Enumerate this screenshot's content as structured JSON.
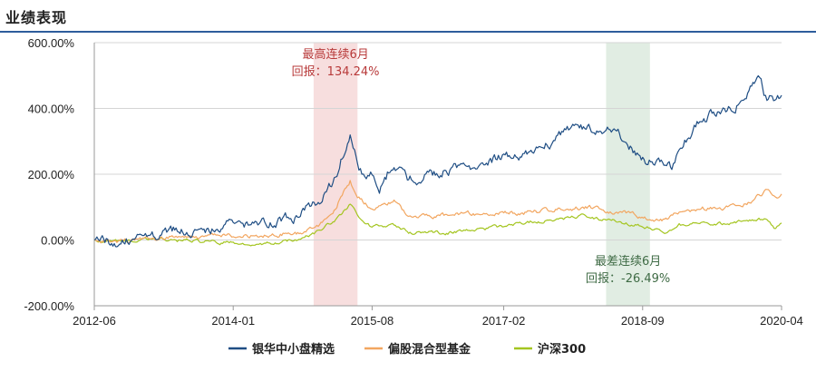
{
  "header": {
    "title": "业绩表现"
  },
  "colors": {
    "series1": "#1f4e84",
    "series2": "#f2a660",
    "series3": "#a4c520",
    "best_band": "#f7dede",
    "worst_band": "#e1ede3",
    "best_text": "#b83a3a",
    "worst_text": "#3f6b45",
    "grid": "#d5d5d5",
    "axis": "#999999"
  },
  "chart_data": {
    "type": "line",
    "title": "",
    "xlabel": "",
    "ylabel": "",
    "x_ticks": [
      "2012-06",
      "2014-01",
      "2015-08",
      "2017-02",
      "2018-09",
      "2020-04"
    ],
    "x_range": [
      "2012-06",
      "2020-04"
    ],
    "y_ticks": [
      "600.00%",
      "400.00%",
      "200.00%",
      "0.00%",
      "-200.00%"
    ],
    "ylim": [
      -200,
      600
    ],
    "grid": true,
    "legend_position": "bottom",
    "series": [
      {
        "name": "银华中小盘精选",
        "points": [
          [
            "2012-06",
            0
          ],
          [
            "2012-10",
            -2
          ],
          [
            "2013-01",
            10
          ],
          [
            "2013-05",
            25
          ],
          [
            "2013-09",
            35
          ],
          [
            "2014-01",
            45
          ],
          [
            "2014-04",
            58
          ],
          [
            "2014-07",
            60
          ],
          [
            "2014-10",
            75
          ],
          [
            "2015-01",
            120
          ],
          [
            "2015-03",
            190
          ],
          [
            "2015-05",
            330
          ],
          [
            "2015-06",
            240
          ],
          [
            "2015-07",
            180
          ],
          [
            "2015-08",
            200
          ],
          [
            "2015-09",
            150
          ],
          [
            "2015-11",
            240
          ],
          [
            "2016-01",
            180
          ],
          [
            "2016-03",
            190
          ],
          [
            "2016-07",
            220
          ],
          [
            "2016-10",
            230
          ],
          [
            "2017-02",
            250
          ],
          [
            "2017-05",
            270
          ],
          [
            "2017-09",
            300
          ],
          [
            "2017-12",
            350
          ],
          [
            "2018-02",
            340
          ],
          [
            "2018-04",
            330
          ],
          [
            "2018-06",
            310
          ],
          [
            "2018-09",
            250
          ],
          [
            "2018-11",
            230
          ],
          [
            "2019-01",
            220
          ],
          [
            "2019-02",
            280
          ],
          [
            "2019-05",
            370
          ],
          [
            "2019-08",
            390
          ],
          [
            "2019-11",
            430
          ],
          [
            "2020-01",
            490
          ],
          [
            "2020-02",
            420
          ],
          [
            "2020-04",
            440
          ]
        ]
      },
      {
        "name": "偏股混合型基金",
        "points": [
          [
            "2012-06",
            0
          ],
          [
            "2012-10",
            -5
          ],
          [
            "2013-01",
            3
          ],
          [
            "2013-05",
            8
          ],
          [
            "2013-09",
            10
          ],
          [
            "2014-01",
            12
          ],
          [
            "2014-06",
            15
          ],
          [
            "2014-10",
            22
          ],
          [
            "2015-01",
            50
          ],
          [
            "2015-03",
            100
          ],
          [
            "2015-05",
            180
          ],
          [
            "2015-06",
            130
          ],
          [
            "2015-08",
            95
          ],
          [
            "2015-11",
            120
          ],
          [
            "2016-01",
            70
          ],
          [
            "2016-06",
            75
          ],
          [
            "2016-10",
            80
          ],
          [
            "2017-02",
            82
          ],
          [
            "2017-06",
            85
          ],
          [
            "2017-10",
            95
          ],
          [
            "2018-01",
            100
          ],
          [
            "2018-04",
            90
          ],
          [
            "2018-08",
            75
          ],
          [
            "2018-12",
            60
          ],
          [
            "2019-02",
            85
          ],
          [
            "2019-05",
            95
          ],
          [
            "2019-09",
            100
          ],
          [
            "2019-12",
            120
          ],
          [
            "2020-02",
            150
          ],
          [
            "2020-03",
            130
          ],
          [
            "2020-04",
            140
          ]
        ]
      },
      {
        "name": "沪深300",
        "points": [
          [
            "2012-06",
            0
          ],
          [
            "2012-10",
            -8
          ],
          [
            "2013-01",
            5
          ],
          [
            "2013-05",
            0
          ],
          [
            "2013-09",
            -5
          ],
          [
            "2014-01",
            -8
          ],
          [
            "2014-06",
            -10
          ],
          [
            "2014-10",
            0
          ],
          [
            "2015-01",
            30
          ],
          [
            "2015-03",
            60
          ],
          [
            "2015-05",
            110
          ],
          [
            "2015-06",
            75
          ],
          [
            "2015-08",
            40
          ],
          [
            "2015-11",
            45
          ],
          [
            "2016-01",
            25
          ],
          [
            "2016-06",
            22
          ],
          [
            "2016-10",
            30
          ],
          [
            "2017-02",
            40
          ],
          [
            "2017-06",
            55
          ],
          [
            "2017-10",
            65
          ],
          [
            "2018-01",
            75
          ],
          [
            "2018-04",
            60
          ],
          [
            "2018-08",
            45
          ],
          [
            "2018-12",
            25
          ],
          [
            "2019-02",
            45
          ],
          [
            "2019-05",
            50
          ],
          [
            "2019-09",
            50
          ],
          [
            "2019-12",
            60
          ],
          [
            "2020-02",
            62
          ],
          [
            "2020-03",
            40
          ],
          [
            "2020-04",
            52
          ]
        ]
      }
    ],
    "annotations": [
      {
        "id": "best",
        "label_line1": "最高连续6月",
        "label_line2": "回报：134.24%",
        "band_start": "2014-12",
        "band_end": "2015-06"
      },
      {
        "id": "worst",
        "label_line1": "最差连续6月",
        "label_line2": "回报：-26.49%",
        "band_start": "2018-04",
        "band_end": "2018-10"
      }
    ]
  }
}
